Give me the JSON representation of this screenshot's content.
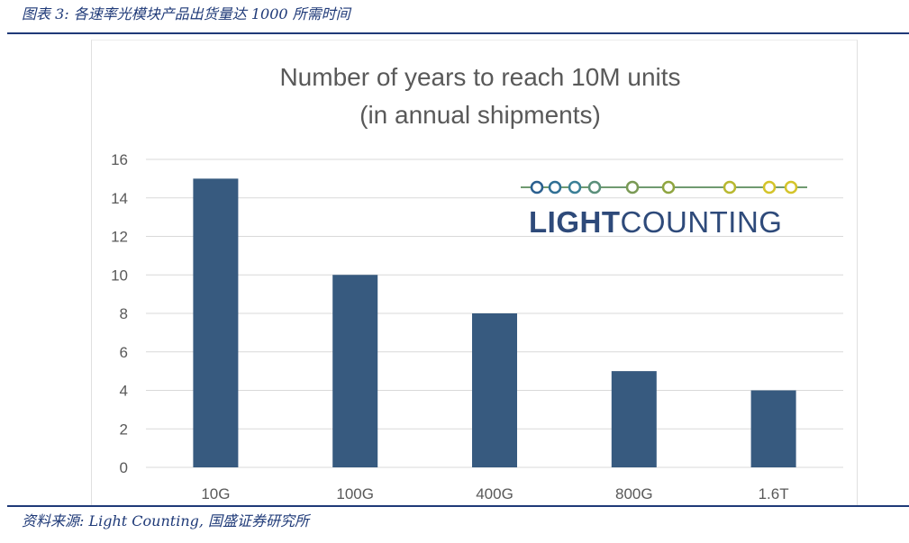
{
  "caption": "图表 3:  各速率光模块产品出货量达 1000 所需时间",
  "source": "资料来源:  Light Counting,  国盛证券研究所",
  "logo": {
    "text_bold": "LIGHT",
    "text_light": "COUNTING",
    "text_color": "#2e4a7a",
    "dot_colors": [
      "#2a5f8f",
      "#2f6f94",
      "#3a7f96",
      "#5a8f7a",
      "#7a9a55",
      "#8fa540",
      "#b8b830",
      "#d4c42a"
    ]
  },
  "colors": {
    "bar": "#375a7f",
    "grid": "#d9d9d9",
    "axis_text": "#595959",
    "title_text": "#595959"
  },
  "chart_data": {
    "type": "bar",
    "title": "Number of years to reach 10M units",
    "subtitle": "(in annual shipments)",
    "categories": [
      "10G",
      "100G",
      "400G",
      "800G",
      "1.6T"
    ],
    "values": [
      15,
      10,
      8,
      5,
      4
    ],
    "xlabel": "",
    "ylabel": "",
    "ylim": [
      0,
      16
    ],
    "yticks": [
      0,
      2,
      4,
      6,
      8,
      10,
      12,
      14,
      16
    ],
    "grid": true,
    "legend": "none"
  }
}
